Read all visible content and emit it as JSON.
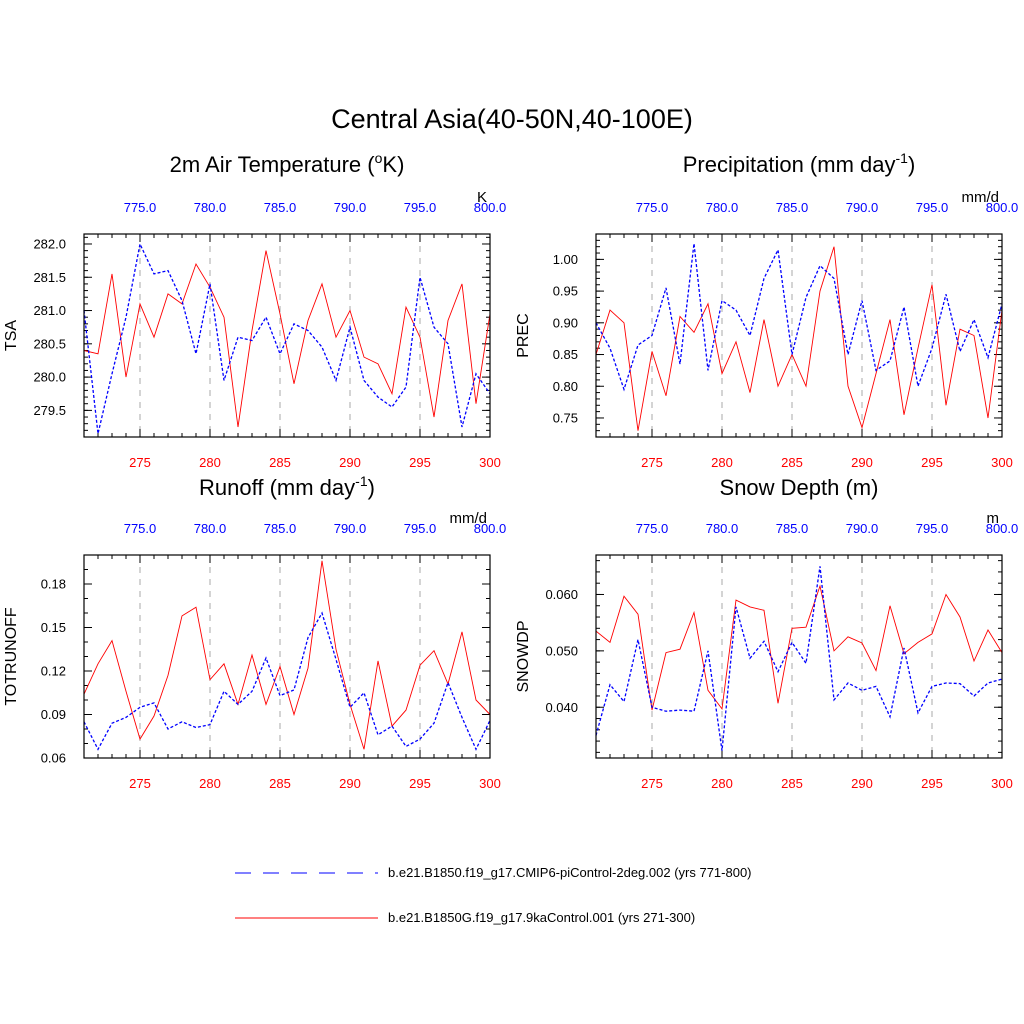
{
  "title": "Central Asia(40-50N,40-100E)",
  "colors": {
    "ctrl": "#ff0000",
    "pi": "#0000ff",
    "grid": "#aaaaaa",
    "frame": "#000000"
  },
  "chart_data": [
    {
      "type": "line",
      "title": "2m Air Temperature (°K)",
      "title_main": "2m Air Temperature (",
      "title_sup": "o",
      "title_tail": "K)",
      "ylabel": "TSA",
      "unit": "K",
      "x_bottom": {
        "range": [
          271,
          300
        ],
        "ticks": [
          "275",
          "280",
          "285",
          "290",
          "295",
          "300"
        ]
      },
      "x_top": {
        "range": [
          771,
          800
        ],
        "ticks": [
          "775.0",
          "780.0",
          "785.0",
          "790.0",
          "795.0",
          "800.0"
        ]
      },
      "ylim": [
        279.1,
        282.15
      ],
      "yticks": [
        279.5,
        280.0,
        280.5,
        281.0,
        281.5,
        282.0
      ],
      "yticklabels": [
        "279.5",
        "280.0",
        "280.5",
        "281.0",
        "281.5",
        "282.0"
      ],
      "yminor": 0.1,
      "series": [
        {
          "name": "b.e21.B1850G.f19_g17.9kaControl.001 (yrs 271-300)",
          "axis": "bottom",
          "x": [
            271,
            272,
            273,
            274,
            275,
            276,
            277,
            278,
            279,
            280,
            281,
            282,
            283,
            284,
            285,
            286,
            287,
            288,
            289,
            290,
            291,
            292,
            293,
            294,
            295,
            296,
            297,
            298,
            299,
            300
          ],
          "values": [
            280.4,
            280.35,
            281.55,
            280.0,
            281.1,
            280.6,
            281.25,
            281.1,
            281.7,
            281.35,
            280.9,
            279.25,
            280.7,
            281.9,
            280.95,
            279.9,
            280.85,
            281.4,
            280.6,
            281.0,
            280.3,
            280.2,
            279.75,
            281.05,
            280.6,
            279.4,
            280.85,
            281.4,
            279.6,
            280.95
          ]
        },
        {
          "name": "b.e21.B1850.f19_g17.CMIP6-piControl-2deg.002 (yrs 771-800)",
          "axis": "top",
          "x": [
            771,
            772,
            773,
            774,
            775,
            776,
            777,
            778,
            779,
            780,
            781,
            782,
            783,
            784,
            785,
            786,
            787,
            788,
            789,
            790,
            791,
            792,
            793,
            794,
            795,
            796,
            797,
            798,
            799,
            800
          ],
          "values": [
            281.0,
            279.15,
            280.05,
            280.9,
            282.0,
            281.55,
            281.6,
            281.15,
            280.35,
            281.4,
            279.95,
            280.6,
            280.55,
            280.9,
            280.35,
            280.8,
            280.7,
            280.45,
            279.95,
            280.75,
            279.95,
            279.7,
            279.55,
            279.85,
            281.5,
            280.75,
            280.5,
            279.25,
            280.05,
            279.75
          ]
        }
      ]
    },
    {
      "type": "line",
      "title": "Precipitation (mm day-1)",
      "title_main": "Precipitation (mm day",
      "title_sup": "-1",
      "title_tail": ")",
      "ylabel": "PREC",
      "unit": "mm/d",
      "x_bottom": {
        "range": [
          271,
          300
        ],
        "ticks": [
          "275",
          "280",
          "285",
          "290",
          "295",
          "300"
        ]
      },
      "x_top": {
        "range": [
          771,
          800
        ],
        "ticks": [
          "775.0",
          "780.0",
          "785.0",
          "790.0",
          "795.0",
          "800.0"
        ]
      },
      "ylim": [
        0.72,
        1.04
      ],
      "yticks": [
        0.75,
        0.8,
        0.85,
        0.9,
        0.95,
        1.0
      ],
      "yticklabels": [
        "0.75",
        "0.80",
        "0.85",
        "0.90",
        "0.95",
        "1.00"
      ],
      "yminor": 0.01,
      "series": [
        {
          "name": "b.e21.B1850G.f19_g17.9kaControl.001 (yrs 271-300)",
          "axis": "bottom",
          "x": [
            271,
            272,
            273,
            274,
            275,
            276,
            277,
            278,
            279,
            280,
            281,
            282,
            283,
            284,
            285,
            286,
            287,
            288,
            289,
            290,
            291,
            292,
            293,
            294,
            295,
            296,
            297,
            298,
            299,
            300
          ],
          "values": [
            0.85,
            0.92,
            0.9,
            0.73,
            0.855,
            0.785,
            0.91,
            0.885,
            0.93,
            0.82,
            0.87,
            0.79,
            0.905,
            0.8,
            0.85,
            0.8,
            0.95,
            1.02,
            0.8,
            0.735,
            0.82,
            0.905,
            0.755,
            0.86,
            0.96,
            0.77,
            0.89,
            0.88,
            0.75,
            0.92
          ]
        },
        {
          "name": "b.e21.B1850.f19_g17.CMIP6-piControl-2deg.002 (yrs 771-800)",
          "axis": "top",
          "x": [
            771,
            772,
            773,
            774,
            775,
            776,
            777,
            778,
            779,
            780,
            781,
            782,
            783,
            784,
            785,
            786,
            787,
            788,
            789,
            790,
            791,
            792,
            793,
            794,
            795,
            796,
            797,
            798,
            799,
            800
          ],
          "values": [
            0.9,
            0.86,
            0.795,
            0.865,
            0.88,
            0.955,
            0.835,
            1.025,
            0.825,
            0.935,
            0.92,
            0.88,
            0.97,
            1.015,
            0.85,
            0.94,
            0.99,
            0.97,
            0.85,
            0.935,
            0.825,
            0.84,
            0.925,
            0.8,
            0.86,
            0.945,
            0.855,
            0.905,
            0.845,
            0.93
          ]
        }
      ]
    },
    {
      "type": "line",
      "title": "Runoff (mm day-1)",
      "title_main": "Runoff (mm day",
      "title_sup": "-1",
      "title_tail": ")",
      "ylabel": "TOTRUNOFF",
      "unit": "mm/d",
      "x_bottom": {
        "range": [
          271,
          300
        ],
        "ticks": [
          "275",
          "280",
          "285",
          "290",
          "295",
          "300"
        ]
      },
      "x_top": {
        "range": [
          771,
          800
        ],
        "ticks": [
          "775.0",
          "780.0",
          "785.0",
          "790.0",
          "795.0",
          "800.0"
        ]
      },
      "ylim": [
        0.06,
        0.2
      ],
      "yticks": [
        0.06,
        0.09,
        0.12,
        0.15,
        0.18
      ],
      "yticklabels": [
        "0.06",
        "0.09",
        "0.12",
        "0.15",
        "0.18"
      ],
      "yminor": 0.01,
      "series": [
        {
          "name": "b.e21.B1850G.f19_g17.9kaControl.001 (yrs 271-300)",
          "axis": "bottom",
          "x": [
            271,
            272,
            273,
            274,
            275,
            276,
            277,
            278,
            279,
            280,
            281,
            282,
            283,
            284,
            285,
            286,
            287,
            288,
            289,
            290,
            291,
            292,
            293,
            294,
            295,
            296,
            297,
            298,
            299,
            300
          ],
          "values": [
            0.104,
            0.125,
            0.141,
            0.106,
            0.073,
            0.089,
            0.117,
            0.158,
            0.164,
            0.114,
            0.125,
            0.097,
            0.131,
            0.097,
            0.123,
            0.09,
            0.122,
            0.196,
            0.135,
            0.097,
            0.066,
            0.127,
            0.082,
            0.093,
            0.124,
            0.134,
            0.111,
            0.147,
            0.1,
            0.09
          ]
        },
        {
          "name": "b.e21.B1850.f19_g17.CMIP6-piControl-2deg.002 (yrs 771-800)",
          "axis": "top",
          "x": [
            771,
            772,
            773,
            774,
            775,
            776,
            777,
            778,
            779,
            780,
            781,
            782,
            783,
            784,
            785,
            786,
            787,
            788,
            789,
            790,
            791,
            792,
            793,
            794,
            795,
            796,
            797,
            798,
            799,
            800
          ],
          "values": [
            0.085,
            0.066,
            0.084,
            0.088,
            0.095,
            0.098,
            0.08,
            0.085,
            0.081,
            0.083,
            0.106,
            0.097,
            0.106,
            0.129,
            0.103,
            0.107,
            0.143,
            0.16,
            0.128,
            0.095,
            0.105,
            0.076,
            0.082,
            0.068,
            0.073,
            0.084,
            0.112,
            0.088,
            0.066,
            0.086
          ]
        }
      ]
    },
    {
      "type": "line",
      "title": "Snow Depth (m)",
      "title_main": "Snow Depth (m)",
      "title_sup": "",
      "title_tail": "",
      "ylabel": "SNOWDP",
      "unit": "m",
      "x_bottom": {
        "range": [
          271,
          300
        ],
        "ticks": [
          "275",
          "280",
          "285",
          "290",
          "295",
          "300"
        ]
      },
      "x_top": {
        "range": [
          771,
          800
        ],
        "ticks": [
          "775.0",
          "780.0",
          "785.0",
          "790.0",
          "795.0",
          "800.0"
        ]
      },
      "ylim": [
        0.031,
        0.067
      ],
      "yticks": [
        0.04,
        0.05,
        0.06
      ],
      "yticklabels": [
        "0.040",
        "0.050",
        "0.060"
      ],
      "yminor": 0.002,
      "series": [
        {
          "name": "b.e21.B1850G.f19_g17.9kaControl.001 (yrs 271-300)",
          "axis": "bottom",
          "x": [
            271,
            272,
            273,
            274,
            275,
            276,
            277,
            278,
            279,
            280,
            281,
            282,
            283,
            284,
            285,
            286,
            287,
            288,
            289,
            290,
            291,
            292,
            293,
            294,
            295,
            296,
            297,
            298,
            299,
            300
          ],
          "values": [
            0.0535,
            0.0515,
            0.0597,
            0.0565,
            0.0395,
            0.0497,
            0.0503,
            0.0568,
            0.043,
            0.0397,
            0.059,
            0.0578,
            0.0572,
            0.0407,
            0.054,
            0.0542,
            0.0615,
            0.05,
            0.0525,
            0.0514,
            0.0465,
            0.058,
            0.0495,
            0.0515,
            0.053,
            0.06,
            0.056,
            0.0482,
            0.0537,
            0.0497
          ]
        },
        {
          "name": "b.e21.B1850.f19_g17.CMIP6-piControl-2deg.002 (yrs 771-800)",
          "axis": "top",
          "x": [
            771,
            772,
            773,
            774,
            775,
            776,
            777,
            778,
            779,
            780,
            781,
            782,
            783,
            784,
            785,
            786,
            787,
            788,
            789,
            790,
            791,
            792,
            793,
            794,
            795,
            796,
            797,
            798,
            799,
            800
          ],
          "values": [
            0.035,
            0.044,
            0.041,
            0.052,
            0.04,
            0.0393,
            0.0395,
            0.0393,
            0.05,
            0.0323,
            0.0578,
            0.0487,
            0.0517,
            0.0463,
            0.0515,
            0.0478,
            0.065,
            0.0413,
            0.0443,
            0.043,
            0.0437,
            0.0383,
            0.0505,
            0.039,
            0.0437,
            0.0443,
            0.0442,
            0.042,
            0.0443,
            0.045
          ]
        }
      ]
    }
  ],
  "legend": [
    {
      "label": "b.e21.B1850.f19_g17.CMIP6-piControl-2deg.002 (yrs 771-800)",
      "style": "dashed",
      "color": "#0000ff"
    },
    {
      "label": "b.e21.B1850G.f19_g17.9kaControl.001 (yrs 271-300)",
      "style": "solid",
      "color": "#ff0000"
    }
  ]
}
